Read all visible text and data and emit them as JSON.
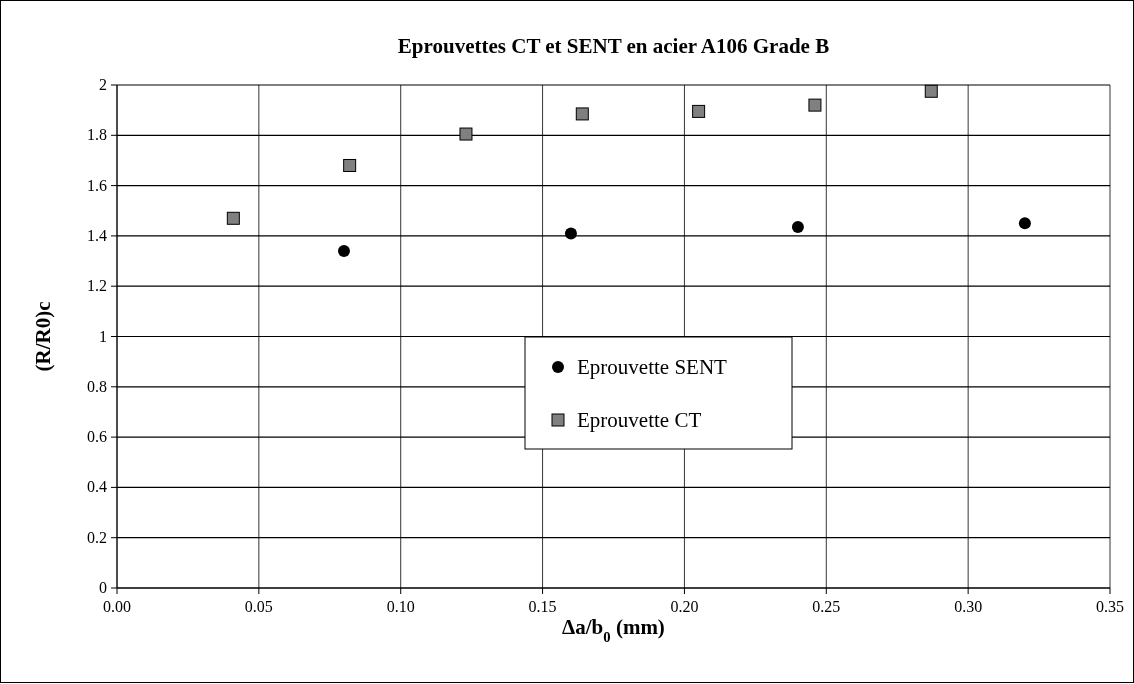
{
  "chart_data": {
    "type": "scatter",
    "title": "Eprouvettes CT et SENT en acier A106 Grade B",
    "xlabel": "Δa/b$_{0}$ (mm)",
    "ylabel": "(R/R0)c",
    "xlim": [
      0,
      0.35
    ],
    "xticks": [
      {
        "value": 0,
        "label": "0.00"
      },
      {
        "value": 0.05,
        "label": "0.05"
      },
      {
        "value": 0.1,
        "label": "0.10"
      },
      {
        "value": 0.15,
        "label": "0.15"
      },
      {
        "value": 0.2,
        "label": "0.20"
      },
      {
        "value": 0.25,
        "label": "0.25"
      },
      {
        "value": 0.3,
        "label": "0.30"
      },
      {
        "value": 0.35,
        "label": "0.35"
      }
    ],
    "ylim": [
      0,
      2
    ],
    "yticks": [
      0,
      0.2,
      0.4,
      0.6,
      0.8,
      1,
      1.2,
      1.4,
      1.6,
      1.8,
      2
    ],
    "grid": true,
    "legend": "center",
    "series": [
      {
        "name": "Eprouvette SENT",
        "color": "#000000",
        "marker": "circle",
        "x": [
          0.08,
          0.16,
          0.24,
          0.32
        ],
        "values": [
          1.34,
          1.41,
          1.435,
          1.45
        ]
      },
      {
        "name": "Eprouvette CT",
        "color": "#808080",
        "marker": "square",
        "x": [
          0.041,
          0.082,
          0.123,
          0.164,
          0.205,
          0.246,
          0.287
        ],
        "values": [
          1.47,
          1.68,
          1.805,
          1.885,
          1.895,
          1.92,
          1.975
        ]
      }
    ]
  }
}
